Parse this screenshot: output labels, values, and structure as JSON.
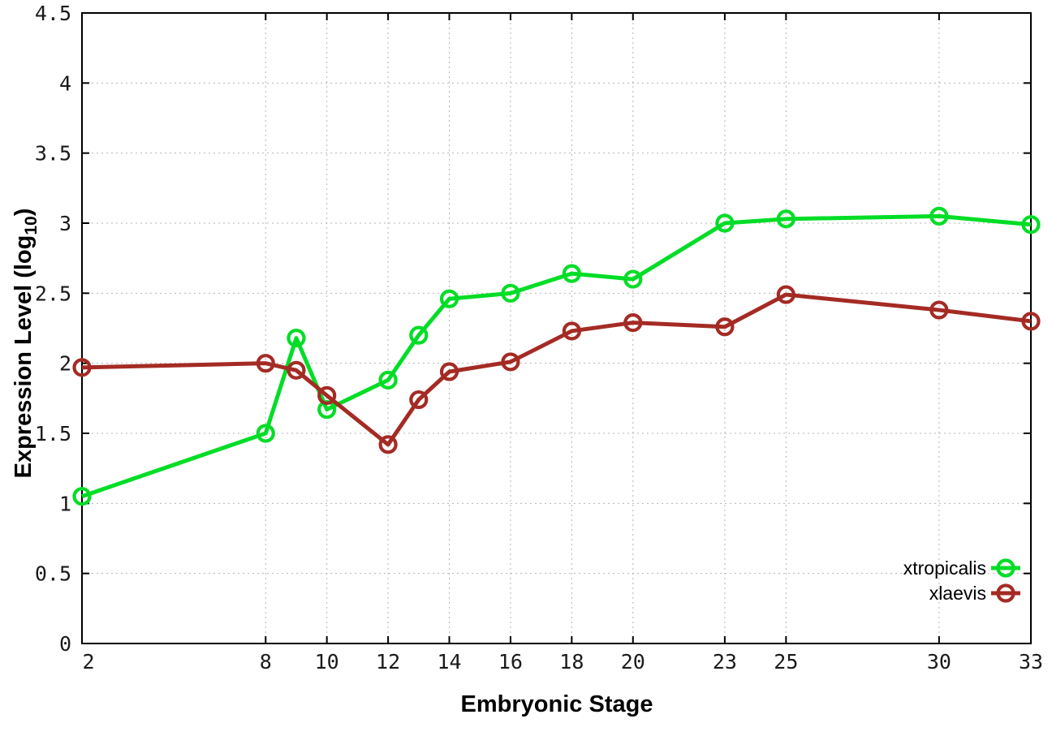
{
  "chart_data": {
    "type": "line",
    "title": "",
    "xlabel": "Embryonic Stage",
    "ylabel": "Expression Level (log10)",
    "ylabel_parts": {
      "prefix": "Expression Level (log",
      "sub": "10",
      "suffix": ")"
    },
    "xlim": [
      2,
      33
    ],
    "ylim": [
      0,
      4.5
    ],
    "xticks": [
      2,
      8,
      10,
      12,
      14,
      16,
      18,
      20,
      23,
      25,
      30,
      33
    ],
    "xtick_labels": [
      "2",
      "8",
      "10",
      "12",
      "14",
      "16",
      "18",
      "20",
      "23",
      "25",
      "30",
      "33"
    ],
    "yticks": [
      0,
      0.5,
      1,
      1.5,
      2,
      2.5,
      3,
      3.5,
      4,
      4.5
    ],
    "ytick_labels": [
      "0",
      "0.5",
      "1",
      "1.5",
      "2",
      "2.5",
      "3",
      "3.5",
      "4",
      "4.5"
    ],
    "grid": true,
    "grid_color": "#b4b4b4",
    "border_color": "#000000",
    "legend_position": "inside-bottom-right",
    "x": [
      2,
      8,
      9,
      10,
      12,
      13,
      14,
      16,
      18,
      20,
      23,
      25,
      30,
      33
    ],
    "series": [
      {
        "name": "xtropicalis",
        "color": "#00dd26",
        "values": [
          1.05,
          1.5,
          2.18,
          1.67,
          1.88,
          2.2,
          2.46,
          2.5,
          2.64,
          2.6,
          3.0,
          3.03,
          3.05,
          2.99
        ]
      },
      {
        "name": "xlaevis",
        "color": "#a42b24",
        "values": [
          1.97,
          2.0,
          1.95,
          1.77,
          1.42,
          1.74,
          1.94,
          2.01,
          2.23,
          2.29,
          2.26,
          2.49,
          2.38,
          2.3
        ]
      }
    ]
  }
}
